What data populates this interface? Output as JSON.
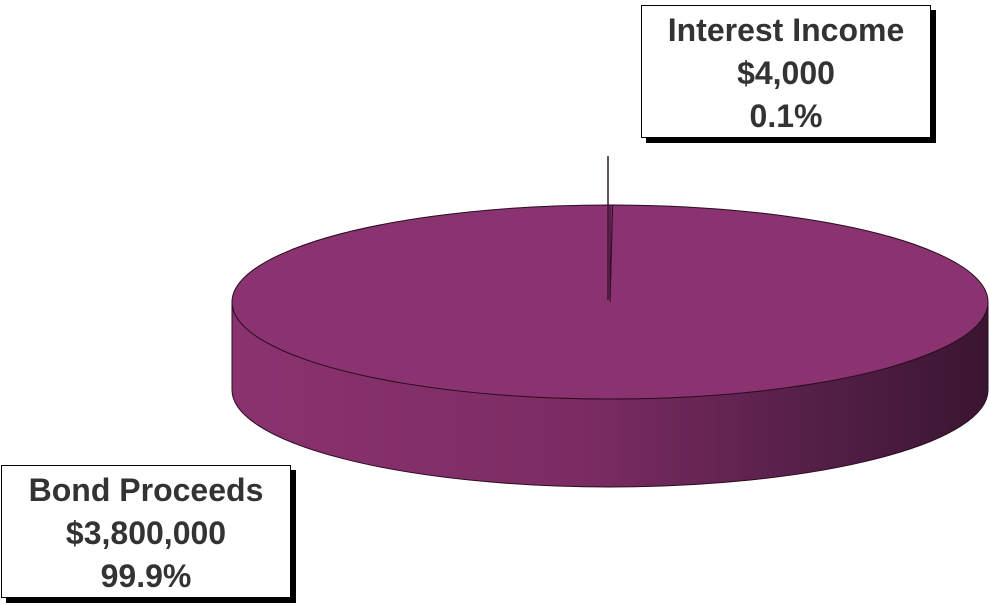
{
  "chart_data": {
    "type": "pie",
    "style": "3d",
    "slices": [
      {
        "label": "Bond Proceeds",
        "value": 3800000,
        "value_label": "$3,800,000",
        "percent_label": "99.9%"
      },
      {
        "label": "Interest Income",
        "value": 4000,
        "value_label": "$4,000",
        "percent_label": "0.1%"
      }
    ],
    "colors": {
      "slice": "#8b3370",
      "rim_dark": "#3e1634",
      "outline": "#2a0d22"
    },
    "legend": "none"
  }
}
